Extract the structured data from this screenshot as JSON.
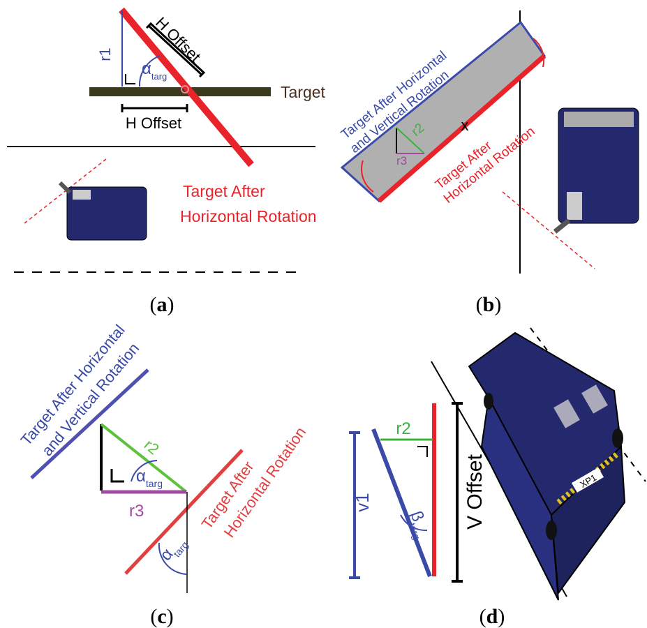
{
  "panels": [
    {
      "caption": {
        "open": "(",
        "letter": "a",
        "close": ")"
      },
      "h_offset_diag": "H Offset",
      "r1": "r1",
      "angle": {
        "symbol": "α",
        "subscript": "targ"
      },
      "target": "Target",
      "h_offset": "H Offset",
      "rotated_target": [
        "Target After",
        "Horizontal Rotation"
      ]
    },
    {
      "caption": {
        "open": "(",
        "letter": "b",
        "close": ")"
      },
      "rotated_target_v": [
        "Target After Horizontal",
        "and Vertical Rotation"
      ],
      "r2": "r2",
      "r3": "r3",
      "center": "x",
      "rotated_target": [
        "Target After",
        "Horizontal Rotation"
      ]
    },
    {
      "caption": {
        "open": "(",
        "letter": "c",
        "close": ")"
      },
      "rotated_target_v": [
        "Target After Horizontal",
        "and Vertical Rotation"
      ],
      "r2": "r2",
      "angle_inner": {
        "symbol": "α",
        "subscript": "targ"
      },
      "r3": "r3",
      "angle_outer": {
        "symbol": "α",
        "subscript": "targ"
      },
      "rotated_target": [
        "Target After",
        "Horizontal Rotation"
      ]
    },
    {
      "caption": {
        "open": "(",
        "letter": "d",
        "close": ")"
      },
      "r2": "r2",
      "v1": "v1",
      "angle": {
        "symbol": "β",
        "subscript": "targ"
      },
      "v_offset": "V Offset",
      "robot_label": "XP1"
    }
  ]
}
